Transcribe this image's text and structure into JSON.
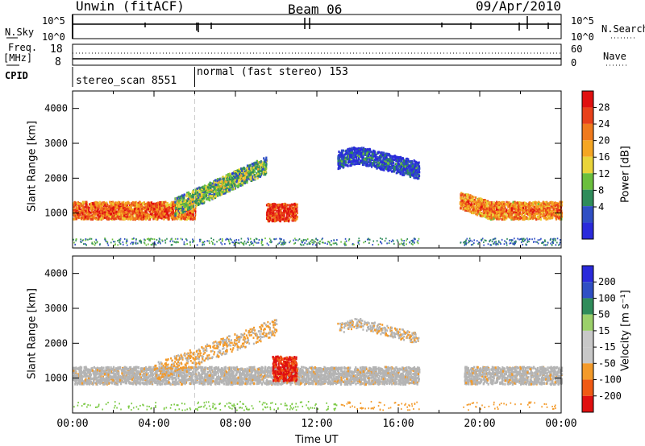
{
  "header": {
    "radar": "Unwin (fitACF)",
    "beam": "Beam 06",
    "date": "09/Apr/2010"
  },
  "top_panels": {
    "nsky_label": "N.Sky",
    "nsearch_label": "N.Search",
    "nsky_ticks": [
      "10^5",
      "10^0"
    ],
    "nsearch_ticks": [
      "10^5",
      "10^0"
    ],
    "freq_label_line1": "Freq.",
    "freq_label_line2": "[MHz]",
    "freq_ticks": [
      "18",
      "8"
    ],
    "nave_label": "Nave",
    "nave_ticks": [
      "60",
      "0"
    ],
    "cpid_label": "CPID",
    "cpid_modes": [
      {
        "name": "stereo_scan 8551",
        "start_hour": 0
      },
      {
        "name": "normal (fast stereo) 153",
        "start_hour": 6
      }
    ]
  },
  "colors": {
    "power_scale": [
      "#2a2adb",
      "#2f4fc4",
      "#2f8c5a",
      "#6bbf3d",
      "#e9d43a",
      "#f5a623",
      "#f07a1d",
      "#e8411a",
      "#e01010"
    ],
    "velocity_scale": [
      "#e01010",
      "#f05a14",
      "#f39a2a",
      "#c8c8c8",
      "#c8c8c8",
      "#9bd06a",
      "#2f8c5a",
      "#2f4fc4",
      "#2a2adb"
    ],
    "ground_scatter": "#b4b4b4"
  },
  "chart_data": [
    {
      "type": "heatmap",
      "panel": "power",
      "ylabel": "Slant Range [km]",
      "xlabel": "",
      "x_ticks": [
        "00:00",
        "04:00",
        "08:00",
        "12:00",
        "16:00",
        "20:00",
        "00:00"
      ],
      "y_ticks": [
        "1000",
        "2000",
        "3000",
        "4000"
      ],
      "ylim": [
        0,
        4500
      ],
      "xlim_hours": [
        0,
        24
      ],
      "colorbar": {
        "label": "Power [dB]",
        "ticks": [
          "28",
          "24",
          "20",
          "16",
          "12",
          "8",
          "4"
        ],
        "range": [
          0,
          32
        ]
      },
      "features": [
        {
          "desc": "band",
          "t_start": 0,
          "t_end": 6,
          "range_km_center": 1100,
          "power_db": 26
        },
        {
          "desc": "rising arc",
          "t_start": 5,
          "t_end": 9.5,
          "range_km_center": 1900,
          "power_db": 14
        },
        {
          "desc": "intense patch",
          "t_start": 9.5,
          "t_end": 11,
          "range_km_center": 1050,
          "power_db": 30
        },
        {
          "desc": "mid-day arc",
          "t_start": 13,
          "t_end": 17,
          "range_km_center": 2400,
          "power_db": 6
        },
        {
          "desc": "evening band",
          "t_start": 19,
          "t_end": 24,
          "range_km_center": 1100,
          "power_db": 24
        }
      ]
    },
    {
      "type": "heatmap",
      "panel": "velocity",
      "ylabel": "Slant Range [km]",
      "xlabel": "Time UT",
      "x_ticks": [
        "00:00",
        "04:00",
        "08:00",
        "12:00",
        "16:00",
        "20:00",
        "00:00"
      ],
      "y_ticks": [
        "1000",
        "2000",
        "3000",
        "4000"
      ],
      "ylim": [
        0,
        4500
      ],
      "xlim_hours": [
        0,
        24
      ],
      "colorbar": {
        "label": "Velocity [m s⁻¹]",
        "ticks": [
          "200",
          "100",
          "50",
          "15",
          "-15",
          "-50",
          "-100",
          "-200"
        ]
      },
      "features": [
        {
          "desc": "ground scatter band",
          "t_start": 0,
          "t_end": 24,
          "range_km_center": 1100,
          "velocity": 0
        },
        {
          "desc": "strong negative",
          "t_start": 9.8,
          "t_end": 11,
          "range_km_center": 1300,
          "velocity": -200
        }
      ]
    }
  ]
}
